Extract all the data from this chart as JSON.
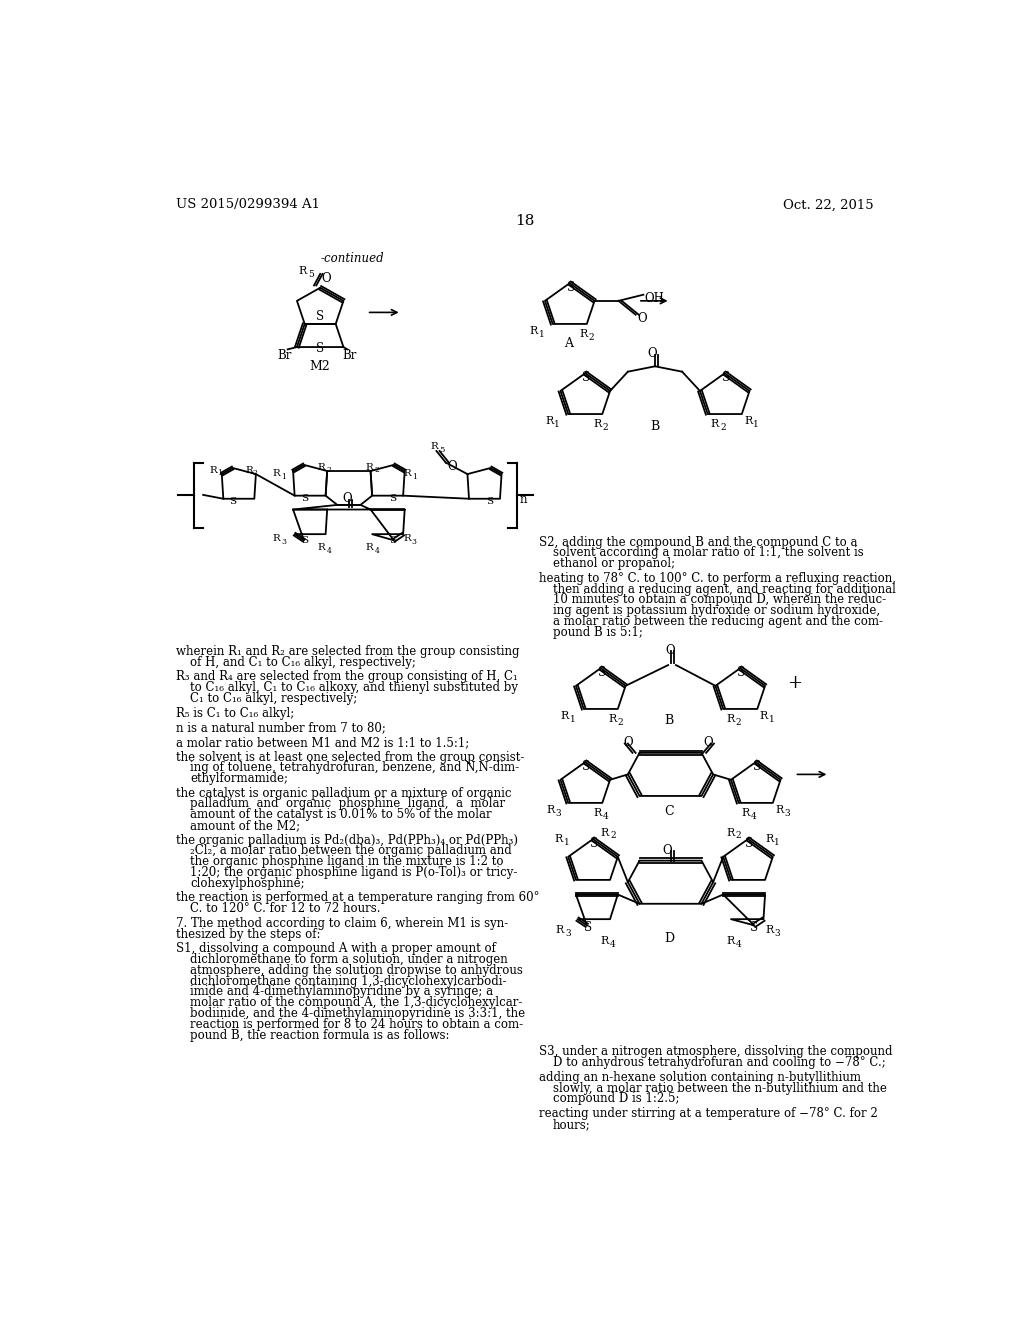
{
  "background_color": "#ffffff",
  "header_left": "US 2015/0299394 A1",
  "header_right": "Oct. 22, 2015",
  "page_number": "18"
}
